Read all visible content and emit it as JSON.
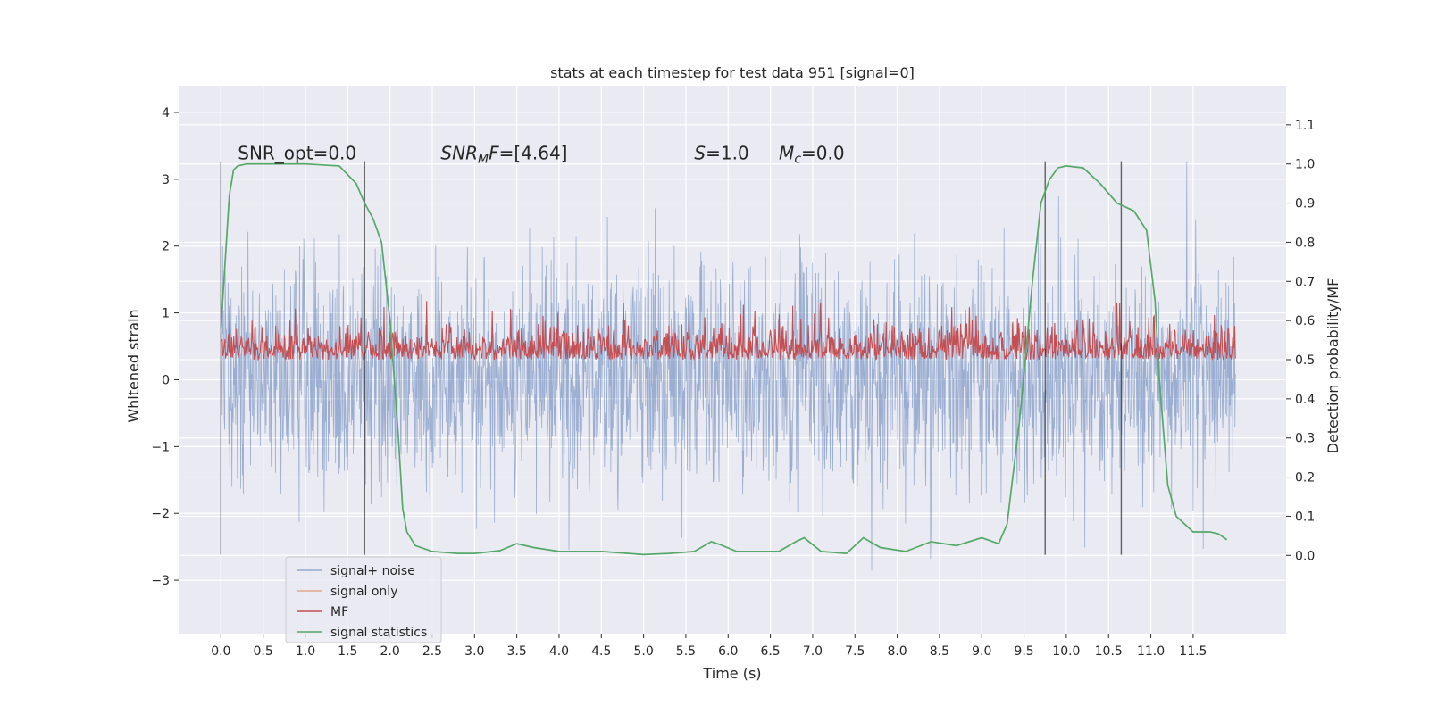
{
  "chart_data": {
    "type": "line",
    "title": "stats at each timestep for test data 951 [signal=0]",
    "xlabel": "Time (s)",
    "ylabel": "Whitened strain",
    "y2label": "Detection probability/MF",
    "xlim": [
      -0.5,
      12.6
    ],
    "ylim": [
      -3.8,
      4.4
    ],
    "y2lim": [
      -0.2,
      1.2
    ],
    "x_ticks": [
      0.0,
      0.5,
      1.0,
      1.5,
      2.0,
      2.5,
      3.0,
      3.5,
      4.0,
      4.5,
      5.0,
      5.5,
      6.0,
      6.5,
      7.0,
      7.5,
      8.0,
      8.5,
      9.0,
      9.5,
      10.0,
      10.5,
      11.0,
      11.5
    ],
    "x_tick_labels": [
      "0.0",
      "0.5",
      "1.0",
      "1.5",
      "2.0",
      "2.5",
      "3.0",
      "3.5",
      "4.0",
      "4.5",
      "5.0",
      "5.5",
      "6.0",
      "6.5",
      "7.0",
      "7.5",
      "8.0",
      "8.5",
      "9.0",
      "9.5",
      "10.0",
      "10.5",
      "11.0",
      "11.5"
    ],
    "y_ticks": [
      4,
      3,
      2,
      1,
      0,
      -1,
      -2,
      -3
    ],
    "y_tick_labels": [
      "4",
      "3",
      "2",
      "1",
      "0",
      "−1",
      "−2",
      "−3"
    ],
    "y2_ticks": [
      1.1,
      1.0,
      0.9,
      0.8,
      0.7,
      0.6,
      0.5,
      0.4,
      0.3,
      0.2,
      0.1,
      0.0
    ],
    "y2_tick_labels": [
      "1.1",
      "1.0",
      "0.9",
      "0.8",
      "0.7",
      "0.6",
      "0.5",
      "0.4",
      "0.3",
      "0.2",
      "0.1",
      "0.0"
    ],
    "grid": true,
    "legend_position": "bottom-left",
    "annotations": [
      {
        "x": 0.2,
        "y": 3.3,
        "text": "SNR_opt=0.0"
      },
      {
        "x": 2.6,
        "y": 3.3,
        "text": "SNRMF=[4.64]"
      },
      {
        "x": 5.6,
        "y": 3.3,
        "text": "S=1.0"
      },
      {
        "x": 6.6,
        "y": 3.3,
        "text": "Mc=0.0"
      }
    ],
    "vertical_lines": [
      0.0,
      1.7,
      9.75,
      10.65
    ],
    "series": [
      {
        "name": "signal+ noise",
        "color": "#4c72b0",
        "axis": "left",
        "x_range": [
          0.0,
          12.0
        ],
        "amplitude": 1.0,
        "extremes": [
          -3.4,
          4.1
        ]
      },
      {
        "name": "signal only",
        "color": "#dd8452",
        "axis": "left",
        "values": []
      },
      {
        "name": "MF",
        "color": "#c44e52",
        "axis": "right",
        "x_range": [
          0.0,
          12.0
        ],
        "baseline": 0.5,
        "max": 0.65
      },
      {
        "name": "signal statistics",
        "color": "#55a868",
        "axis": "right",
        "x": [
          0.0,
          0.05,
          0.1,
          0.15,
          0.2,
          0.3,
          0.5,
          1.0,
          1.4,
          1.6,
          1.7,
          1.8,
          1.9,
          2.0,
          2.1,
          2.15,
          2.2,
          2.3,
          2.5,
          2.8,
          3.0,
          3.3,
          3.5,
          3.7,
          4.0,
          4.5,
          5.0,
          5.3,
          5.6,
          5.8,
          5.9,
          6.1,
          6.6,
          6.8,
          6.9,
          7.1,
          7.4,
          7.6,
          7.8,
          8.1,
          8.4,
          8.7,
          9.0,
          9.2,
          9.3,
          9.45,
          9.6,
          9.7,
          9.8,
          9.9,
          10.0,
          10.2,
          10.4,
          10.6,
          10.8,
          10.95,
          11.05,
          11.1,
          11.2,
          11.3,
          11.5,
          11.7,
          11.8,
          11.9
        ],
        "values": [
          0.58,
          0.75,
          0.92,
          0.985,
          0.995,
          1.0,
          1.0,
          1.0,
          0.995,
          0.95,
          0.9,
          0.86,
          0.8,
          0.6,
          0.3,
          0.12,
          0.06,
          0.025,
          0.01,
          0.005,
          0.005,
          0.012,
          0.03,
          0.02,
          0.01,
          0.01,
          0.002,
          0.005,
          0.01,
          0.035,
          0.028,
          0.01,
          0.01,
          0.035,
          0.045,
          0.01,
          0.005,
          0.045,
          0.02,
          0.01,
          0.035,
          0.025,
          0.045,
          0.03,
          0.08,
          0.35,
          0.7,
          0.9,
          0.96,
          0.99,
          0.995,
          0.99,
          0.95,
          0.9,
          0.88,
          0.83,
          0.65,
          0.45,
          0.18,
          0.1,
          0.06,
          0.06,
          0.055,
          0.04
        ]
      }
    ]
  }
}
